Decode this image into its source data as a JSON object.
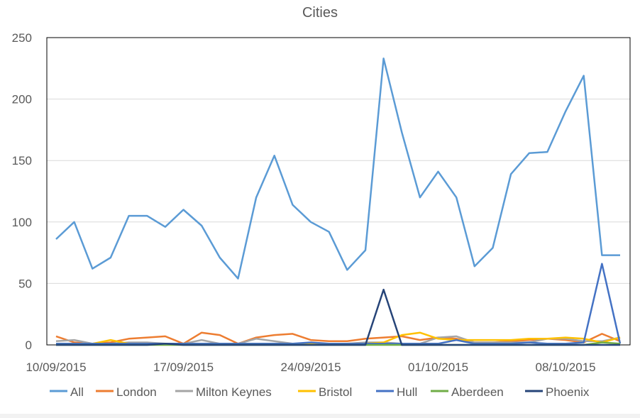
{
  "chart_data": {
    "type": "line",
    "title": "Cities",
    "xlabel": "",
    "ylabel": "",
    "ylim": [
      0,
      250
    ],
    "yticks": [
      0,
      50,
      100,
      150,
      200,
      250
    ],
    "grid": "horizontal",
    "legend_position": "bottom",
    "x": [
      "10/09/2015",
      "11/09/2015",
      "12/09/2015",
      "13/09/2015",
      "14/09/2015",
      "15/09/2015",
      "16/09/2015",
      "17/09/2015",
      "18/09/2015",
      "19/09/2015",
      "20/09/2015",
      "21/09/2015",
      "22/09/2015",
      "23/09/2015",
      "24/09/2015",
      "25/09/2015",
      "26/09/2015",
      "27/09/2015",
      "28/09/2015",
      "29/09/2015",
      "30/09/2015",
      "01/10/2015",
      "02/10/2015",
      "03/10/2015",
      "04/10/2015",
      "05/10/2015",
      "06/10/2015",
      "07/10/2015",
      "08/10/2015",
      "09/10/2015",
      "10/10/2015",
      "11/10/2015"
    ],
    "xtick_labels": [
      "10/09/2015",
      "17/09/2015",
      "24/09/2015",
      "01/10/2015",
      "08/10/2015"
    ],
    "series": [
      {
        "name": "All",
        "color": "#5b9bd5",
        "values": [
          86,
          100,
          62,
          71,
          105,
          105,
          96,
          110,
          97,
          71,
          54,
          120,
          154,
          114,
          100,
          92,
          61,
          77,
          233,
          173,
          120,
          141,
          120,
          64,
          79,
          139,
          156,
          157,
          190,
          219,
          73,
          73
        ]
      },
      {
        "name": "London",
        "color": "#ed7d31",
        "values": [
          7,
          2,
          1,
          2,
          5,
          6,
          7,
          1,
          10,
          8,
          1,
          6,
          8,
          9,
          4,
          3,
          3,
          5,
          6,
          7,
          4,
          6,
          5,
          2,
          2,
          3,
          4,
          5,
          4,
          2,
          9,
          3
        ]
      },
      {
        "name": "Milton Keynes",
        "color": "#a5a5a5",
        "values": [
          3,
          4,
          1,
          1,
          2,
          2,
          1,
          1,
          4,
          1,
          1,
          5,
          3,
          1,
          1,
          1,
          1,
          2,
          2,
          1,
          1,
          6,
          7,
          2,
          2,
          2,
          2,
          5,
          5,
          3,
          3,
          6
        ]
      },
      {
        "name": "Bristol",
        "color": "#ffc000",
        "values": [
          1,
          1,
          1,
          4,
          1,
          1,
          1,
          1,
          1,
          1,
          1,
          1,
          1,
          1,
          1,
          1,
          1,
          1,
          2,
          8,
          10,
          5,
          4,
          4,
          4,
          4,
          5,
          5,
          6,
          5,
          2,
          6
        ]
      },
      {
        "name": "Hull",
        "color": "#4472c4",
        "values": [
          1,
          1,
          1,
          1,
          1,
          1,
          1,
          1,
          1,
          1,
          1,
          1,
          1,
          1,
          2,
          1,
          1,
          1,
          1,
          1,
          1,
          1,
          4,
          1,
          1,
          1,
          2,
          1,
          1,
          2,
          66,
          1
        ]
      },
      {
        "name": "Aberdeen",
        "color": "#70ad47",
        "values": [
          0,
          0,
          0,
          0,
          0,
          0,
          0,
          0,
          0,
          0,
          0,
          0,
          0,
          0,
          0,
          0,
          0,
          0,
          0,
          0,
          0,
          0,
          0,
          0,
          0,
          0,
          0,
          0,
          0,
          0,
          2,
          1
        ]
      },
      {
        "name": "Phoenix",
        "color": "#264478",
        "values": [
          0,
          0,
          0,
          0,
          0,
          0,
          1,
          0,
          0,
          0,
          0,
          0,
          0,
          0,
          0,
          0,
          0,
          0,
          45,
          0,
          0,
          0,
          0,
          0,
          0,
          0,
          0,
          0,
          0,
          0,
          0,
          0
        ]
      }
    ]
  }
}
